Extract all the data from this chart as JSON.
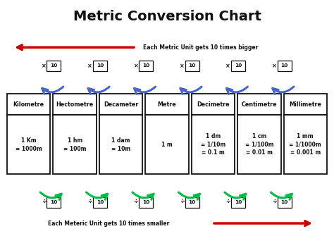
{
  "title": "Metric Conversion Chart",
  "title_bg": "#d0d0d0",
  "bg_color": "#ffffff",
  "units": [
    "Kilometre",
    "Hectometre",
    "Decameter",
    "Metre",
    "Decimetre",
    "Centimetre",
    "Millimetre"
  ],
  "conversions": [
    "1 Km\n= 1000m",
    "1 hm\n= 100m",
    "1 dam\n= 10m",
    "1 m",
    "1 dm\n= 1/10m\n= 0.1 m",
    "1 cm\n= 1/100m\n= 0.01 m",
    "1 mm\n= 1/1000m\n= 0.001 m"
  ],
  "bigger_text": "Each Metric Unit gets 10 times bigger",
  "smaller_text": "Each Meteric Unit gets 10 times smaller",
  "arrow_color_red": "#cc0000",
  "arrow_color_blue": "#4466cc",
  "arrow_color_green": "#00bb44",
  "box_color": "#111111",
  "text_color": "#111111",
  "title_fontsize": 14,
  "unit_fontsize": 5.8,
  "conv_fontsize": 5.5,
  "label_fontsize": 5.8,
  "annot_fontsize": 5.5
}
